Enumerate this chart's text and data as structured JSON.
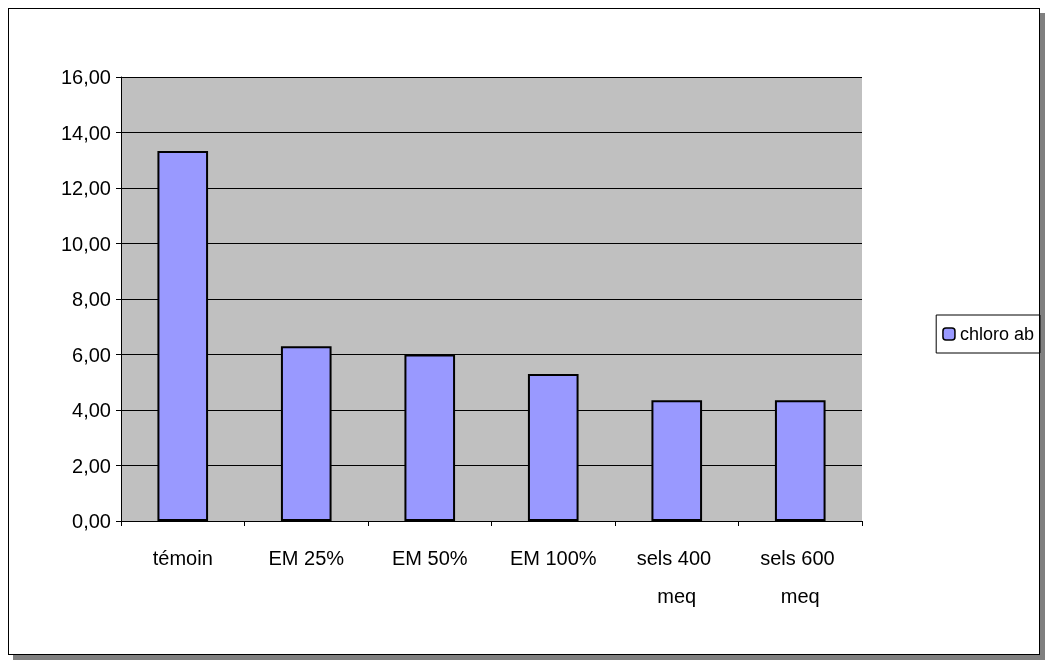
{
  "chart_data": {
    "type": "bar",
    "categories": [
      "témoin",
      "EM 25%",
      "EM 50%",
      "EM 100%",
      "sels 400 meq",
      "sels 600 meq"
    ],
    "series": [
      {
        "name": "chloro ab",
        "color": "#9999ff",
        "values": [
          13.33,
          6.3,
          6.0,
          5.3,
          4.35,
          4.35
        ]
      }
    ],
    "ylim": [
      0,
      16
    ],
    "yticks": [
      {
        "value": 0,
        "label": "0,00"
      },
      {
        "value": 2,
        "label": "2,00"
      },
      {
        "value": 4,
        "label": "4,00"
      },
      {
        "value": 6,
        "label": "6,00"
      },
      {
        "value": 8,
        "label": "8,00"
      },
      {
        "value": 10,
        "label": "10,00"
      },
      {
        "value": 12,
        "label": "12,00"
      },
      {
        "value": 14,
        "label": "14,00"
      },
      {
        "value": 16,
        "label": "16,00"
      }
    ],
    "grid": "y",
    "legend": "right"
  }
}
